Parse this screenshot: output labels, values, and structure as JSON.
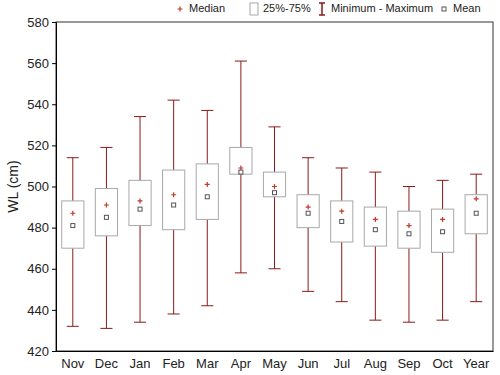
{
  "chart_data": {
    "type": "box",
    "y_label": "WL (cm)",
    "categories": [
      "Nov",
      "Dec",
      "Jan",
      "Feb",
      "Mar",
      "Apr",
      "May",
      "Jun",
      "Jul",
      "Aug",
      "Sep",
      "Oct",
      "Year"
    ],
    "series": [
      {
        "name": "Median",
        "color": "#c0392b",
        "marker": "plus",
        "values": [
          487,
          491,
          493,
          496,
          501,
          509,
          500,
          490,
          488,
          484,
          481,
          484,
          494
        ]
      },
      {
        "name": "25%-75%",
        "color": "#a8a8a8",
        "low": [
          470,
          476,
          481,
          479,
          484,
          506,
          495,
          480,
          473,
          471,
          470,
          468,
          477
        ],
        "high": [
          493,
          499,
          503,
          508,
          511,
          519,
          507,
          496,
          493,
          490,
          488,
          489,
          496
        ]
      },
      {
        "name": "Minimum - Maximum",
        "color": "#8b1a1a",
        "low": [
          432,
          431,
          434,
          438,
          442,
          458,
          460,
          449,
          444,
          435,
          434,
          435,
          444
        ],
        "high": [
          514,
          519,
          534,
          542,
          537,
          561,
          529,
          514,
          509,
          507,
          500,
          503,
          506
        ]
      },
      {
        "name": "Mean",
        "color": "#555555",
        "marker": "square",
        "values": [
          481,
          485,
          489,
          491,
          495,
          507,
          497,
          487,
          483,
          479,
          477,
          478,
          487
        ]
      }
    ],
    "ylim": [
      420,
      580
    ],
    "yticks": [
      420,
      440,
      460,
      480,
      500,
      520,
      540,
      560,
      580
    ],
    "grid": false,
    "legend": "top"
  }
}
